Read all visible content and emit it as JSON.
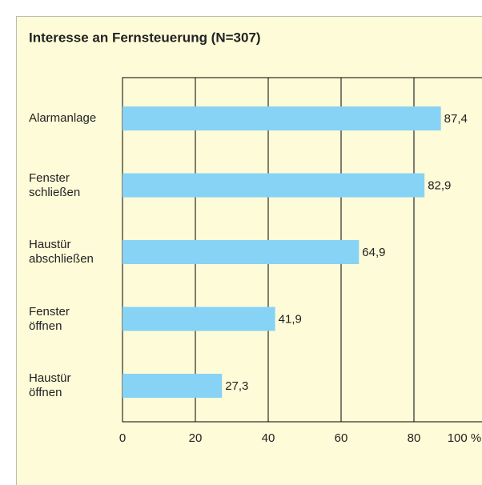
{
  "chart_data": {
    "type": "bar",
    "orientation": "horizontal",
    "title": "Interesse an Fernsteuerung (N=307)",
    "categories": [
      "Alarmanlage",
      "Fenster\nschließen",
      "Haustür\nabschließen",
      "Fenster\nöffnen",
      "Haustür\nöffnen"
    ],
    "values": [
      87.4,
      82.9,
      64.9,
      41.9,
      27.3
    ],
    "value_labels": [
      "87,4",
      "82,9",
      "64,9",
      "41,9",
      "27,3"
    ],
    "color": "#87d3f5",
    "xlim": [
      0,
      100
    ],
    "xticks": [
      0,
      20,
      40,
      60,
      80,
      {
        "value": 100,
        "label": "100 %"
      }
    ],
    "grid": true
  }
}
